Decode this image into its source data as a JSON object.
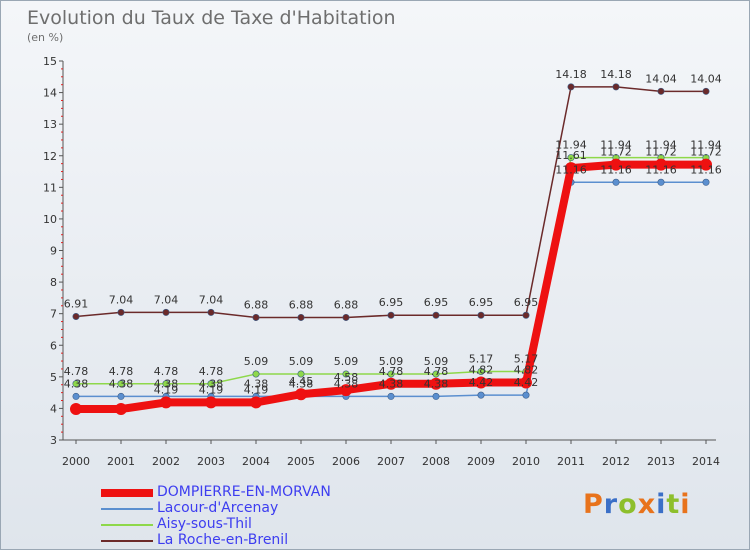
{
  "header": {
    "title": "Evolution du Taux de Taxe d'Habitation",
    "subtitle": "(en %)"
  },
  "logo": {
    "text": "Proxiti",
    "colors": [
      "#e8731c",
      "#3a6fc7",
      "#8dbf2c",
      "#e8731c",
      "#3a6fc7",
      "#8dbf2c",
      "#e8731c"
    ]
  },
  "chart_data": {
    "type": "line",
    "title": "Evolution du Taux de Taxe d'Habitation",
    "subtitle": "(en %)",
    "xlabel": "",
    "ylabel": "",
    "x": [
      "2000",
      "2001",
      "2002",
      "2003",
      "2004",
      "2005",
      "2006",
      "2007",
      "2008",
      "2009",
      "2010",
      "2011",
      "2012",
      "2013",
      "2014"
    ],
    "ylim": [
      3,
      15
    ],
    "yticks": [
      3,
      4,
      5,
      6,
      7,
      8,
      9,
      10,
      11,
      12,
      13,
      14,
      15
    ],
    "grid": false,
    "legend_position": "bottom-left",
    "series": [
      {
        "name": "DOMPIERRE-EN-MORVAN",
        "color": "#ee1111",
        "width": 8,
        "values": [
          3.98,
          3.98,
          4.19,
          4.19,
          4.19,
          4.45,
          4.58,
          4.78,
          4.78,
          4.82,
          4.82,
          11.61,
          11.72,
          11.72,
          11.72
        ],
        "labels": [
          "",
          "",
          "4.19",
          "4.19",
          "4.19",
          "4.45",
          "4.58",
          "4.78",
          "4.78",
          "4.82",
          "4.82",
          "11.61",
          "11.72",
          "11.72",
          "11.72"
        ]
      },
      {
        "name": "Lacour-d'Arcenay",
        "color": "#5b8fcf",
        "width": 1.5,
        "values": [
          4.38,
          4.38,
          4.38,
          4.38,
          4.38,
          4.38,
          4.38,
          4.38,
          4.38,
          4.42,
          4.42,
          11.16,
          11.16,
          11.16,
          11.16
        ],
        "labels": [
          "4.38",
          "4.38",
          "4.38",
          "4.38",
          "4.38",
          "4.38",
          "4.38",
          "4.38",
          "4.38",
          "4.42",
          "4.42",
          "11.16",
          "11.16",
          "11.16",
          "11.16"
        ]
      },
      {
        "name": "Aisy-sous-Thil",
        "color": "#8ed84a",
        "width": 1.5,
        "values": [
          4.78,
          4.78,
          4.78,
          4.78,
          5.09,
          5.09,
          5.09,
          5.09,
          5.09,
          5.17,
          5.17,
          11.94,
          11.94,
          11.94,
          11.94
        ],
        "labels": [
          "4.78",
          "4.78",
          "4.78",
          "4.78",
          "5.09",
          "5.09",
          "5.09",
          "5.09",
          "5.09",
          "5.17",
          "5.17",
          "11.94",
          "11.94",
          "11.94",
          "11.94"
        ]
      },
      {
        "name": "La Roche-en-Brenil",
        "color": "#6b2a2a",
        "width": 1.5,
        "values": [
          6.91,
          7.04,
          7.04,
          7.04,
          6.88,
          6.88,
          6.88,
          6.95,
          6.95,
          6.95,
          6.95,
          14.18,
          14.18,
          14.04,
          14.04
        ],
        "labels": [
          "6.91",
          "7.04",
          "7.04",
          "7.04",
          "6.88",
          "6.88",
          "6.88",
          "6.95",
          "6.95",
          "6.95",
          "6.95",
          "14.18",
          "14.18",
          "14.04",
          "14.04"
        ]
      }
    ]
  }
}
